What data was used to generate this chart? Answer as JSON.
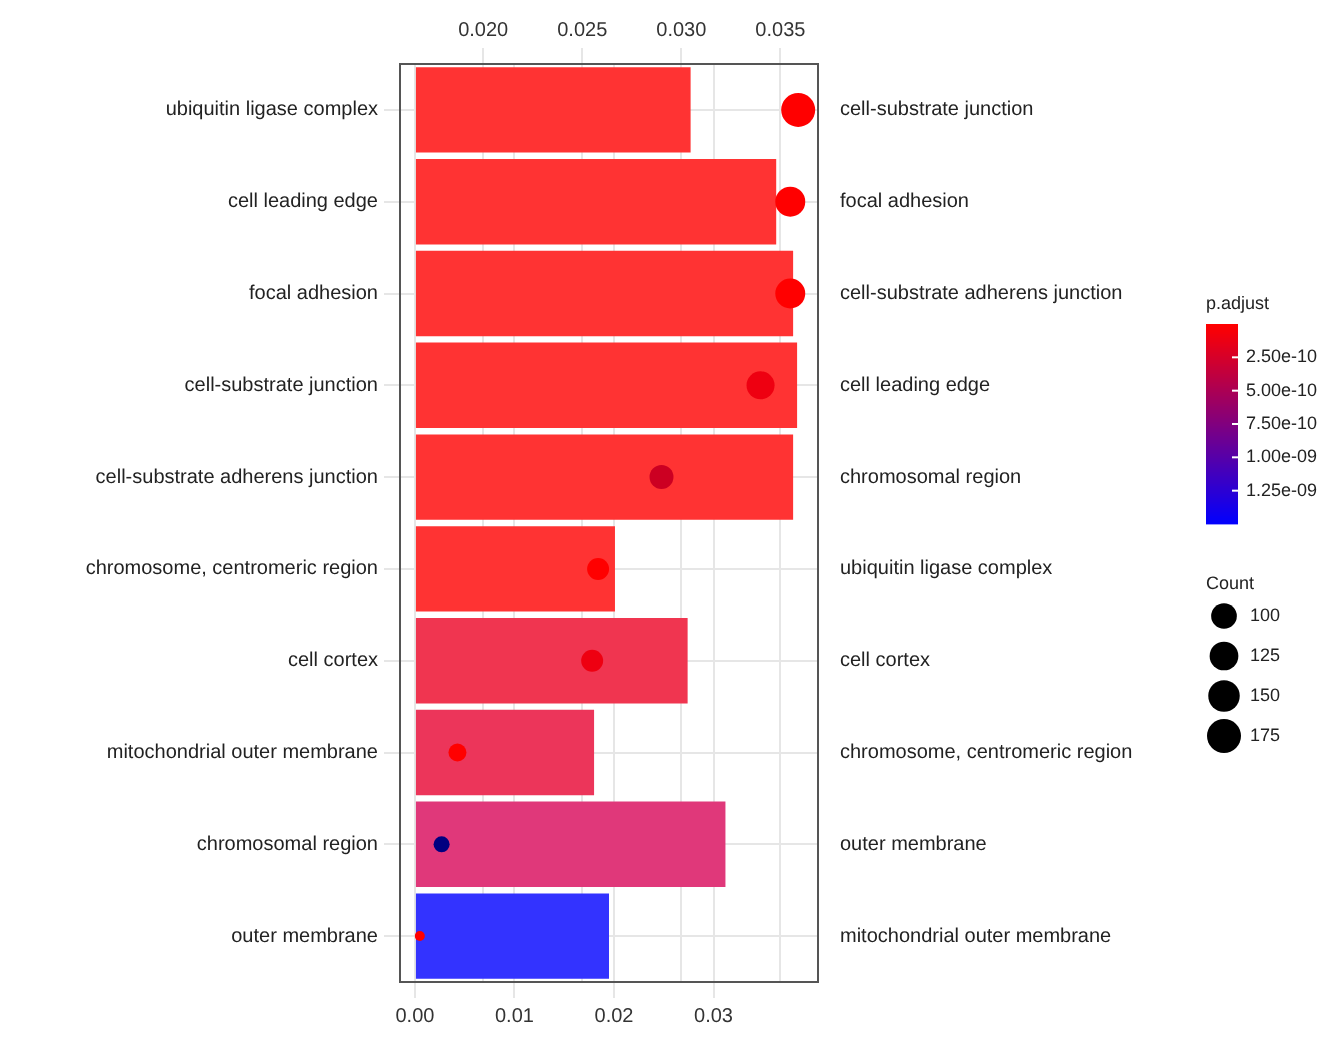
{
  "chart_data": {
    "type": "bar",
    "orientation": "horizontal",
    "categories": [
      "ubiquitin ligase complex",
      "cell leading edge",
      "focal adhesion",
      "cell-substrate junction",
      "cell-substrate adherens junction",
      "chromosome, centromeric region",
      "cell cortex",
      "mitochondrial outer membrane",
      "chromosomal region",
      "outer membrane"
    ],
    "y2_categories": [
      "cell-substrate junction",
      "focal adhesion",
      "cell-substrate adherens junction",
      "cell leading edge",
      "chromosomal region",
      "ubiquitin ligase complex",
      "cell cortex",
      "chromosome, centromeric region",
      "outer membrane",
      "mitochondrial outer membrane"
    ],
    "series": [
      {
        "values": [
          0.0277,
          0.0363,
          0.038,
          0.0384,
          0.038,
          0.0201,
          0.0274,
          0.018,
          0.0312,
          0.0195
        ],
        "colors": [
          "#ff3333",
          "#ff3333",
          "#ff3333",
          "#ff3333",
          "#ff3333",
          "#ff3333",
          "#f03550",
          "#ec355a",
          "#e0387a",
          "#3333ff"
        ]
      },
      {
        "type": "scatter",
        "axis": "x2",
        "values": [
          0.0359,
          0.0355,
          0.0355,
          0.034,
          0.029,
          0.0258,
          0.0255,
          0.0187,
          0.0179,
          0.0168
        ],
        "sizes": [
          175,
          136,
          136,
          119,
          87,
          73,
          73,
          49,
          39,
          15
        ],
        "colors": [
          "#ff0000",
          "#ff0000",
          "#ff0000",
          "#ee0011",
          "#cc0022",
          "#ff0000",
          "#ee0011",
          "#ff0000",
          "#000080",
          "#ff0000"
        ]
      }
    ],
    "xlim": [
      -0.0015,
      0.0405
    ],
    "xticks": [
      {
        "value": 0,
        "label": "0.00"
      },
      {
        "value": 0.01,
        "label": "0.01"
      },
      {
        "value": 0.02,
        "label": "0.02"
      },
      {
        "value": 0.03,
        "label": "0.03"
      }
    ],
    "x2lim": [
      0.0158,
      0.0369
    ],
    "x2ticks": [
      {
        "value": 0.02,
        "label": "0.020"
      },
      {
        "value": 0.025,
        "label": "0.025"
      },
      {
        "value": 0.03,
        "label": "0.030"
      },
      {
        "value": 0.035,
        "label": "0.035"
      }
    ],
    "clabel": "p.adjust",
    "clim": [
      0,
      1.5e-09
    ],
    "cticks": [
      {
        "value": 2.5e-10,
        "label": "2.50e-10"
      },
      {
        "value": 5e-10,
        "label": "5.00e-10"
      },
      {
        "value": 7.5e-10,
        "label": "7.50e-10"
      },
      {
        "value": 1e-09,
        "label": "1.00e-09"
      },
      {
        "value": 1.25e-09,
        "label": "1.25e-09"
      }
    ],
    "legend_title": "Count",
    "size_legend": [
      100,
      125,
      150,
      175
    ],
    "grid": true,
    "marker": "circle"
  }
}
